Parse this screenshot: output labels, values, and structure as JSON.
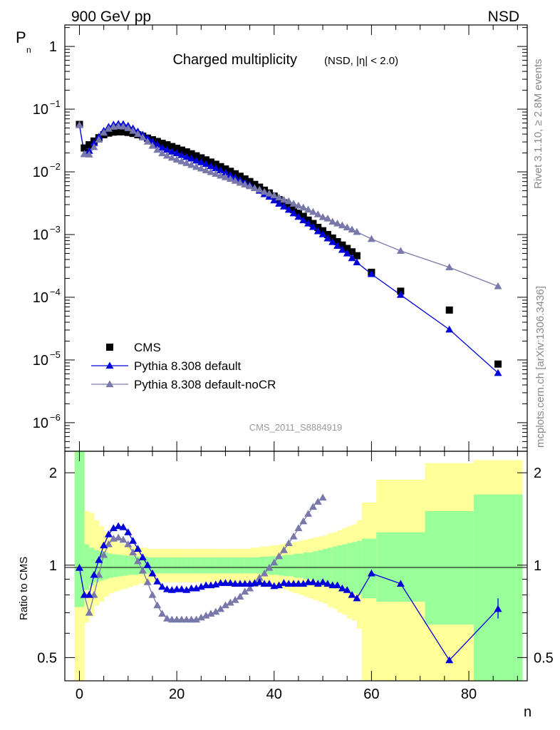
{
  "header": {
    "left": "900 GeV pp",
    "right": "NSD"
  },
  "side_labels": {
    "top": "Rivet 3.1.10, ≥ 2.8M events",
    "bottom": "mcplots.cern.ch [arXiv:1306.3436]"
  },
  "watermark": "CMS_2011_S8884919",
  "colors": {
    "cms": "#000000",
    "default": "#0000dd",
    "nocr": "#7878aa",
    "band_inner": "#99ff99",
    "band_outer": "#ffff99"
  },
  "chart_data": [
    {
      "type": "scatter",
      "title": "Charged multiplicity",
      "subtitle": "(NSD, |η| < 2.0)",
      "ylabel": "P",
      "ylabel_sub": "n",
      "yscale": "log",
      "ylim": [
        3.5e-07,
        2.2
      ],
      "xlim": [
        -3,
        92
      ],
      "ytick_labels": [
        {
          "value": 1,
          "base": "1",
          "exp": ""
        },
        {
          "value": 0.1,
          "base": "10",
          "exp": "−1"
        },
        {
          "value": 0.01,
          "base": "10",
          "exp": "−2"
        },
        {
          "value": 0.001,
          "base": "10",
          "exp": "−3"
        },
        {
          "value": 0.0001,
          "base": "10",
          "exp": "−4"
        },
        {
          "value": 1e-05,
          "base": "10",
          "exp": "−5"
        },
        {
          "value": 1e-06,
          "base": "10",
          "exp": "−6"
        }
      ],
      "legend_position": "bottom-left",
      "series": [
        {
          "name": "CMS",
          "marker": "square",
          "x": [
            0,
            1,
            2,
            3,
            4,
            5,
            6,
            7,
            8,
            9,
            10,
            11,
            12,
            13,
            14,
            15,
            16,
            17,
            18,
            19,
            20,
            21,
            22,
            23,
            24,
            25,
            26,
            27,
            28,
            29,
            30,
            31,
            32,
            33,
            34,
            35,
            36,
            37,
            38,
            39,
            40,
            41,
            42,
            43,
            44,
            45,
            46,
            47,
            48,
            49,
            50,
            51,
            52,
            53,
            54,
            55,
            56,
            57,
            60,
            66,
            76,
            86
          ],
          "y": [
            0.057,
            0.024,
            0.027,
            0.031,
            0.035,
            0.039,
            0.0415,
            0.043,
            0.0435,
            0.0435,
            0.0425,
            0.041,
            0.039,
            0.037,
            0.0345,
            0.0325,
            0.0305,
            0.0285,
            0.027,
            0.0253,
            0.0237,
            0.0222,
            0.0208,
            0.0194,
            0.018,
            0.0167,
            0.0155,
            0.0143,
            0.0132,
            0.0121,
            0.0111,
            0.0102,
            0.0093,
            0.0085,
            0.0077,
            0.007,
            0.0063,
            0.0057,
            0.0051,
            0.0046,
            0.0041,
            0.0036,
            0.0032,
            0.00285,
            0.0025,
            0.0022,
            0.00195,
            0.0017,
            0.0015,
            0.0013,
            0.00115,
            0.001,
            0.00088,
            0.00077,
            0.00068,
            0.0006,
            0.00053,
            0.00046,
            0.00025,
            0.000125,
            6.25e-05,
            8.6e-06
          ]
        },
        {
          "name": "Pythia 8.308 default",
          "marker": "triangle",
          "x": [
            0,
            1,
            2,
            3,
            4,
            5,
            6,
            7,
            8,
            9,
            10,
            11,
            12,
            13,
            14,
            15,
            16,
            17,
            18,
            19,
            20,
            21,
            22,
            23,
            24,
            25,
            26,
            27,
            28,
            29,
            30,
            31,
            32,
            33,
            34,
            35,
            36,
            37,
            38,
            39,
            40,
            41,
            42,
            43,
            44,
            45,
            46,
            47,
            48,
            49,
            50,
            51,
            52,
            53,
            54,
            55,
            56,
            57,
            60,
            66,
            76,
            86
          ],
          "y": [
            0.056,
            0.0192,
            0.0216,
            0.0288,
            0.0364,
            0.0452,
            0.0523,
            0.0567,
            0.0583,
            0.0579,
            0.0544,
            0.0492,
            0.0441,
            0.0392,
            0.0345,
            0.0305,
            0.027,
            0.0242,
            0.0225,
            0.021,
            0.0198,
            0.0185,
            0.0173,
            0.0163,
            0.0151,
            0.0142,
            0.0133,
            0.0123,
            0.0114,
            0.0106,
            0.0097,
            0.0089,
            0.0081,
            0.0074,
            0.0067,
            0.0061,
            0.0055,
            0.005,
            0.0044,
            0.004,
            0.0035,
            0.0031,
            0.0028,
            0.00248,
            0.00218,
            0.00192,
            0.00169,
            0.0015,
            0.00132,
            0.00113,
            0.00101,
            0.00087,
            0.00076,
            0.00066,
            0.00057,
            0.0005,
            0.00042,
            0.00036,
            0.000234,
            0.000109,
            3.06e-05,
            6.2e-06
          ]
        },
        {
          "name": "Pythia 8.308 default-noCR",
          "marker": "triangle",
          "x": [
            0,
            1,
            2,
            3,
            4,
            5,
            6,
            7,
            8,
            9,
            10,
            11,
            12,
            13,
            14,
            15,
            16,
            17,
            18,
            19,
            20,
            21,
            22,
            23,
            24,
            25,
            26,
            27,
            28,
            29,
            30,
            31,
            32,
            33,
            34,
            35,
            36,
            37,
            38,
            39,
            40,
            41,
            42,
            43,
            44,
            45,
            46,
            47,
            48,
            49,
            50,
            51,
            52,
            53,
            54,
            55,
            56,
            57,
            60,
            66,
            76,
            86
          ],
          "y": [
            0.056,
            0.0192,
            0.0189,
            0.0248,
            0.0326,
            0.0421,
            0.0486,
            0.0525,
            0.0535,
            0.0528,
            0.0497,
            0.0451,
            0.0402,
            0.0354,
            0.0304,
            0.026,
            0.0225,
            0.0198,
            0.0181,
            0.0168,
            0.0157,
            0.0147,
            0.0138,
            0.0129,
            0.012,
            0.0113,
            0.0106,
            0.0099,
            0.0093,
            0.0087,
            0.0082,
            0.0077,
            0.0072,
            0.0067,
            0.0063,
            0.0059,
            0.0055,
            0.0052,
            0.0048,
            0.0045,
            0.0042,
            0.0039,
            0.0036,
            0.0034,
            0.0031,
            0.0029,
            0.0027,
            0.0025,
            0.0023,
            0.0021,
            0.0019,
            0.0018,
            0.0016,
            0.0015,
            0.0014,
            0.0013,
            0.0012,
            0.0011,
            0.00085,
            0.00055,
            0.0003,
            0.00015
          ]
        }
      ]
    },
    {
      "type": "line",
      "ylabel": "Ratio to CMS",
      "xlabel": "n",
      "yscale": "log",
      "ylim": [
        0.42,
        2.35
      ],
      "xlim": [
        -3,
        92
      ],
      "xticks": [
        0,
        20,
        40,
        60,
        80
      ],
      "xtick_labels": [
        "0",
        "20",
        "40",
        "60",
        "80"
      ],
      "yticks": [
        0.5,
        1,
        2
      ],
      "ytick_labels": [
        "0.5",
        "1",
        "2"
      ],
      "reference_line": 1,
      "bands": {
        "edges": [
          -1,
          1,
          2,
          3,
          4,
          5,
          6,
          7,
          8,
          9,
          10,
          11,
          12,
          13,
          14,
          15,
          16,
          17,
          18,
          19,
          20,
          21,
          22,
          23,
          24,
          25,
          26,
          27,
          28,
          29,
          30,
          31,
          32,
          33,
          34,
          35,
          36,
          37,
          38,
          39,
          40,
          41,
          42,
          43,
          44,
          45,
          46,
          47,
          48,
          49,
          50,
          51,
          52,
          53,
          54,
          55,
          56,
          57,
          58,
          61,
          71,
          81,
          91
        ],
        "inner_low": [
          0.73,
          0.83,
          0.86,
          0.88,
          0.89,
          0.9,
          0.91,
          0.915,
          0.92,
          0.925,
          0.93,
          0.93,
          0.935,
          0.935,
          0.94,
          0.94,
          0.94,
          0.94,
          0.94,
          0.94,
          0.94,
          0.94,
          0.94,
          0.94,
          0.94,
          0.94,
          0.94,
          0.94,
          0.94,
          0.94,
          0.94,
          0.94,
          0.94,
          0.94,
          0.94,
          0.94,
          0.94,
          0.935,
          0.935,
          0.93,
          0.93,
          0.925,
          0.92,
          0.92,
          0.91,
          0.91,
          0.9,
          0.9,
          0.89,
          0.88,
          0.87,
          0.86,
          0.85,
          0.84,
          0.83,
          0.82,
          0.81,
          0.8,
          0.78,
          0.76,
          0.64,
          0.36
        ],
        "inner_high": [
          2.35,
          1.17,
          1.14,
          1.12,
          1.11,
          1.1,
          1.09,
          1.085,
          1.08,
          1.075,
          1.07,
          1.07,
          1.065,
          1.065,
          1.06,
          1.06,
          1.06,
          1.06,
          1.06,
          1.06,
          1.06,
          1.06,
          1.06,
          1.06,
          1.06,
          1.06,
          1.06,
          1.06,
          1.06,
          1.06,
          1.06,
          1.06,
          1.06,
          1.06,
          1.06,
          1.06,
          1.06,
          1.065,
          1.065,
          1.07,
          1.07,
          1.075,
          1.08,
          1.08,
          1.09,
          1.09,
          1.1,
          1.1,
          1.11,
          1.12,
          1.13,
          1.14,
          1.15,
          1.16,
          1.17,
          1.18,
          1.19,
          1.2,
          1.22,
          1.28,
          1.5,
          1.7
        ],
        "outer_low": [
          0.35,
          0.65,
          0.68,
          0.74,
          0.76,
          0.79,
          0.81,
          0.82,
          0.83,
          0.84,
          0.85,
          0.86,
          0.87,
          0.87,
          0.88,
          0.88,
          0.88,
          0.88,
          0.88,
          0.88,
          0.88,
          0.88,
          0.88,
          0.88,
          0.88,
          0.88,
          0.88,
          0.88,
          0.88,
          0.88,
          0.87,
          0.87,
          0.87,
          0.87,
          0.87,
          0.87,
          0.86,
          0.86,
          0.85,
          0.85,
          0.84,
          0.84,
          0.83,
          0.82,
          0.81,
          0.8,
          0.79,
          0.78,
          0.77,
          0.76,
          0.75,
          0.73,
          0.72,
          0.7,
          0.69,
          0.67,
          0.66,
          0.62,
          0.4,
          0.4,
          0.4,
          0.35
        ],
        "outer_high": [
          2.35,
          1.5,
          1.48,
          1.4,
          1.34,
          1.28,
          1.22,
          1.2,
          1.18,
          1.17,
          1.16,
          1.15,
          1.14,
          1.14,
          1.13,
          1.13,
          1.13,
          1.13,
          1.13,
          1.13,
          1.13,
          1.13,
          1.13,
          1.13,
          1.13,
          1.13,
          1.13,
          1.13,
          1.13,
          1.13,
          1.13,
          1.13,
          1.13,
          1.13,
          1.13,
          1.14,
          1.14,
          1.15,
          1.15,
          1.16,
          1.16,
          1.17,
          1.18,
          1.18,
          1.19,
          1.2,
          1.21,
          1.22,
          1.23,
          1.24,
          1.25,
          1.27,
          1.28,
          1.3,
          1.32,
          1.34,
          1.36,
          1.4,
          1.6,
          1.9,
          2.15,
          2.2
        ]
      },
      "series": [
        {
          "name": "Pythia 8.308 default",
          "x": [
            0,
            1,
            2,
            3,
            4,
            5,
            6,
            7,
            8,
            9,
            10,
            11,
            12,
            13,
            14,
            15,
            16,
            17,
            18,
            19,
            20,
            21,
            22,
            23,
            24,
            25,
            26,
            27,
            28,
            29,
            30,
            31,
            32,
            33,
            34,
            35,
            36,
            37,
            38,
            39,
            40,
            41,
            42,
            43,
            44,
            45,
            46,
            47,
            48,
            49,
            50,
            51,
            52,
            53,
            54,
            55,
            56,
            57,
            60,
            66,
            76,
            86
          ],
          "y": [
            0.98,
            0.8,
            0.8,
            0.93,
            1.04,
            1.16,
            1.26,
            1.32,
            1.34,
            1.33,
            1.28,
            1.2,
            1.13,
            1.06,
            1.0,
            0.94,
            0.885,
            0.85,
            0.835,
            0.83,
            0.835,
            0.835,
            0.83,
            0.84,
            0.84,
            0.85,
            0.86,
            0.86,
            0.865,
            0.875,
            0.875,
            0.875,
            0.87,
            0.87,
            0.87,
            0.87,
            0.875,
            0.88,
            0.87,
            0.87,
            0.855,
            0.86,
            0.875,
            0.87,
            0.87,
            0.87,
            0.87,
            0.88,
            0.88,
            0.87,
            0.88,
            0.87,
            0.86,
            0.86,
            0.84,
            0.83,
            0.8,
            0.78,
            0.94,
            0.87,
            0.49,
            0.72
          ]
        },
        {
          "name": "Pythia 8.308 default-noCR",
          "x": [
            0,
            1,
            2,
            3,
            4,
            5,
            6,
            7,
            8,
            9,
            10,
            11,
            12,
            13,
            14,
            15,
            16,
            17,
            18,
            19,
            20,
            21,
            22,
            23,
            24,
            25,
            26,
            27,
            28,
            29,
            30,
            31,
            32,
            33,
            34,
            35,
            36,
            37,
            38,
            39,
            40,
            41,
            42,
            43,
            44,
            45,
            46,
            47,
            48,
            49,
            50
          ],
          "y": [
            0.98,
            0.8,
            0.7,
            0.8,
            0.93,
            1.08,
            1.17,
            1.22,
            1.23,
            1.21,
            1.17,
            1.1,
            1.03,
            0.96,
            0.88,
            0.8,
            0.74,
            0.695,
            0.67,
            0.665,
            0.665,
            0.665,
            0.665,
            0.665,
            0.665,
            0.675,
            0.685,
            0.695,
            0.705,
            0.72,
            0.74,
            0.755,
            0.77,
            0.79,
            0.82,
            0.84,
            0.87,
            0.91,
            0.94,
            0.98,
            1.02,
            1.07,
            1.12,
            1.18,
            1.24,
            1.32,
            1.39,
            1.47,
            1.55,
            1.61,
            1.66
          ]
        }
      ]
    }
  ]
}
